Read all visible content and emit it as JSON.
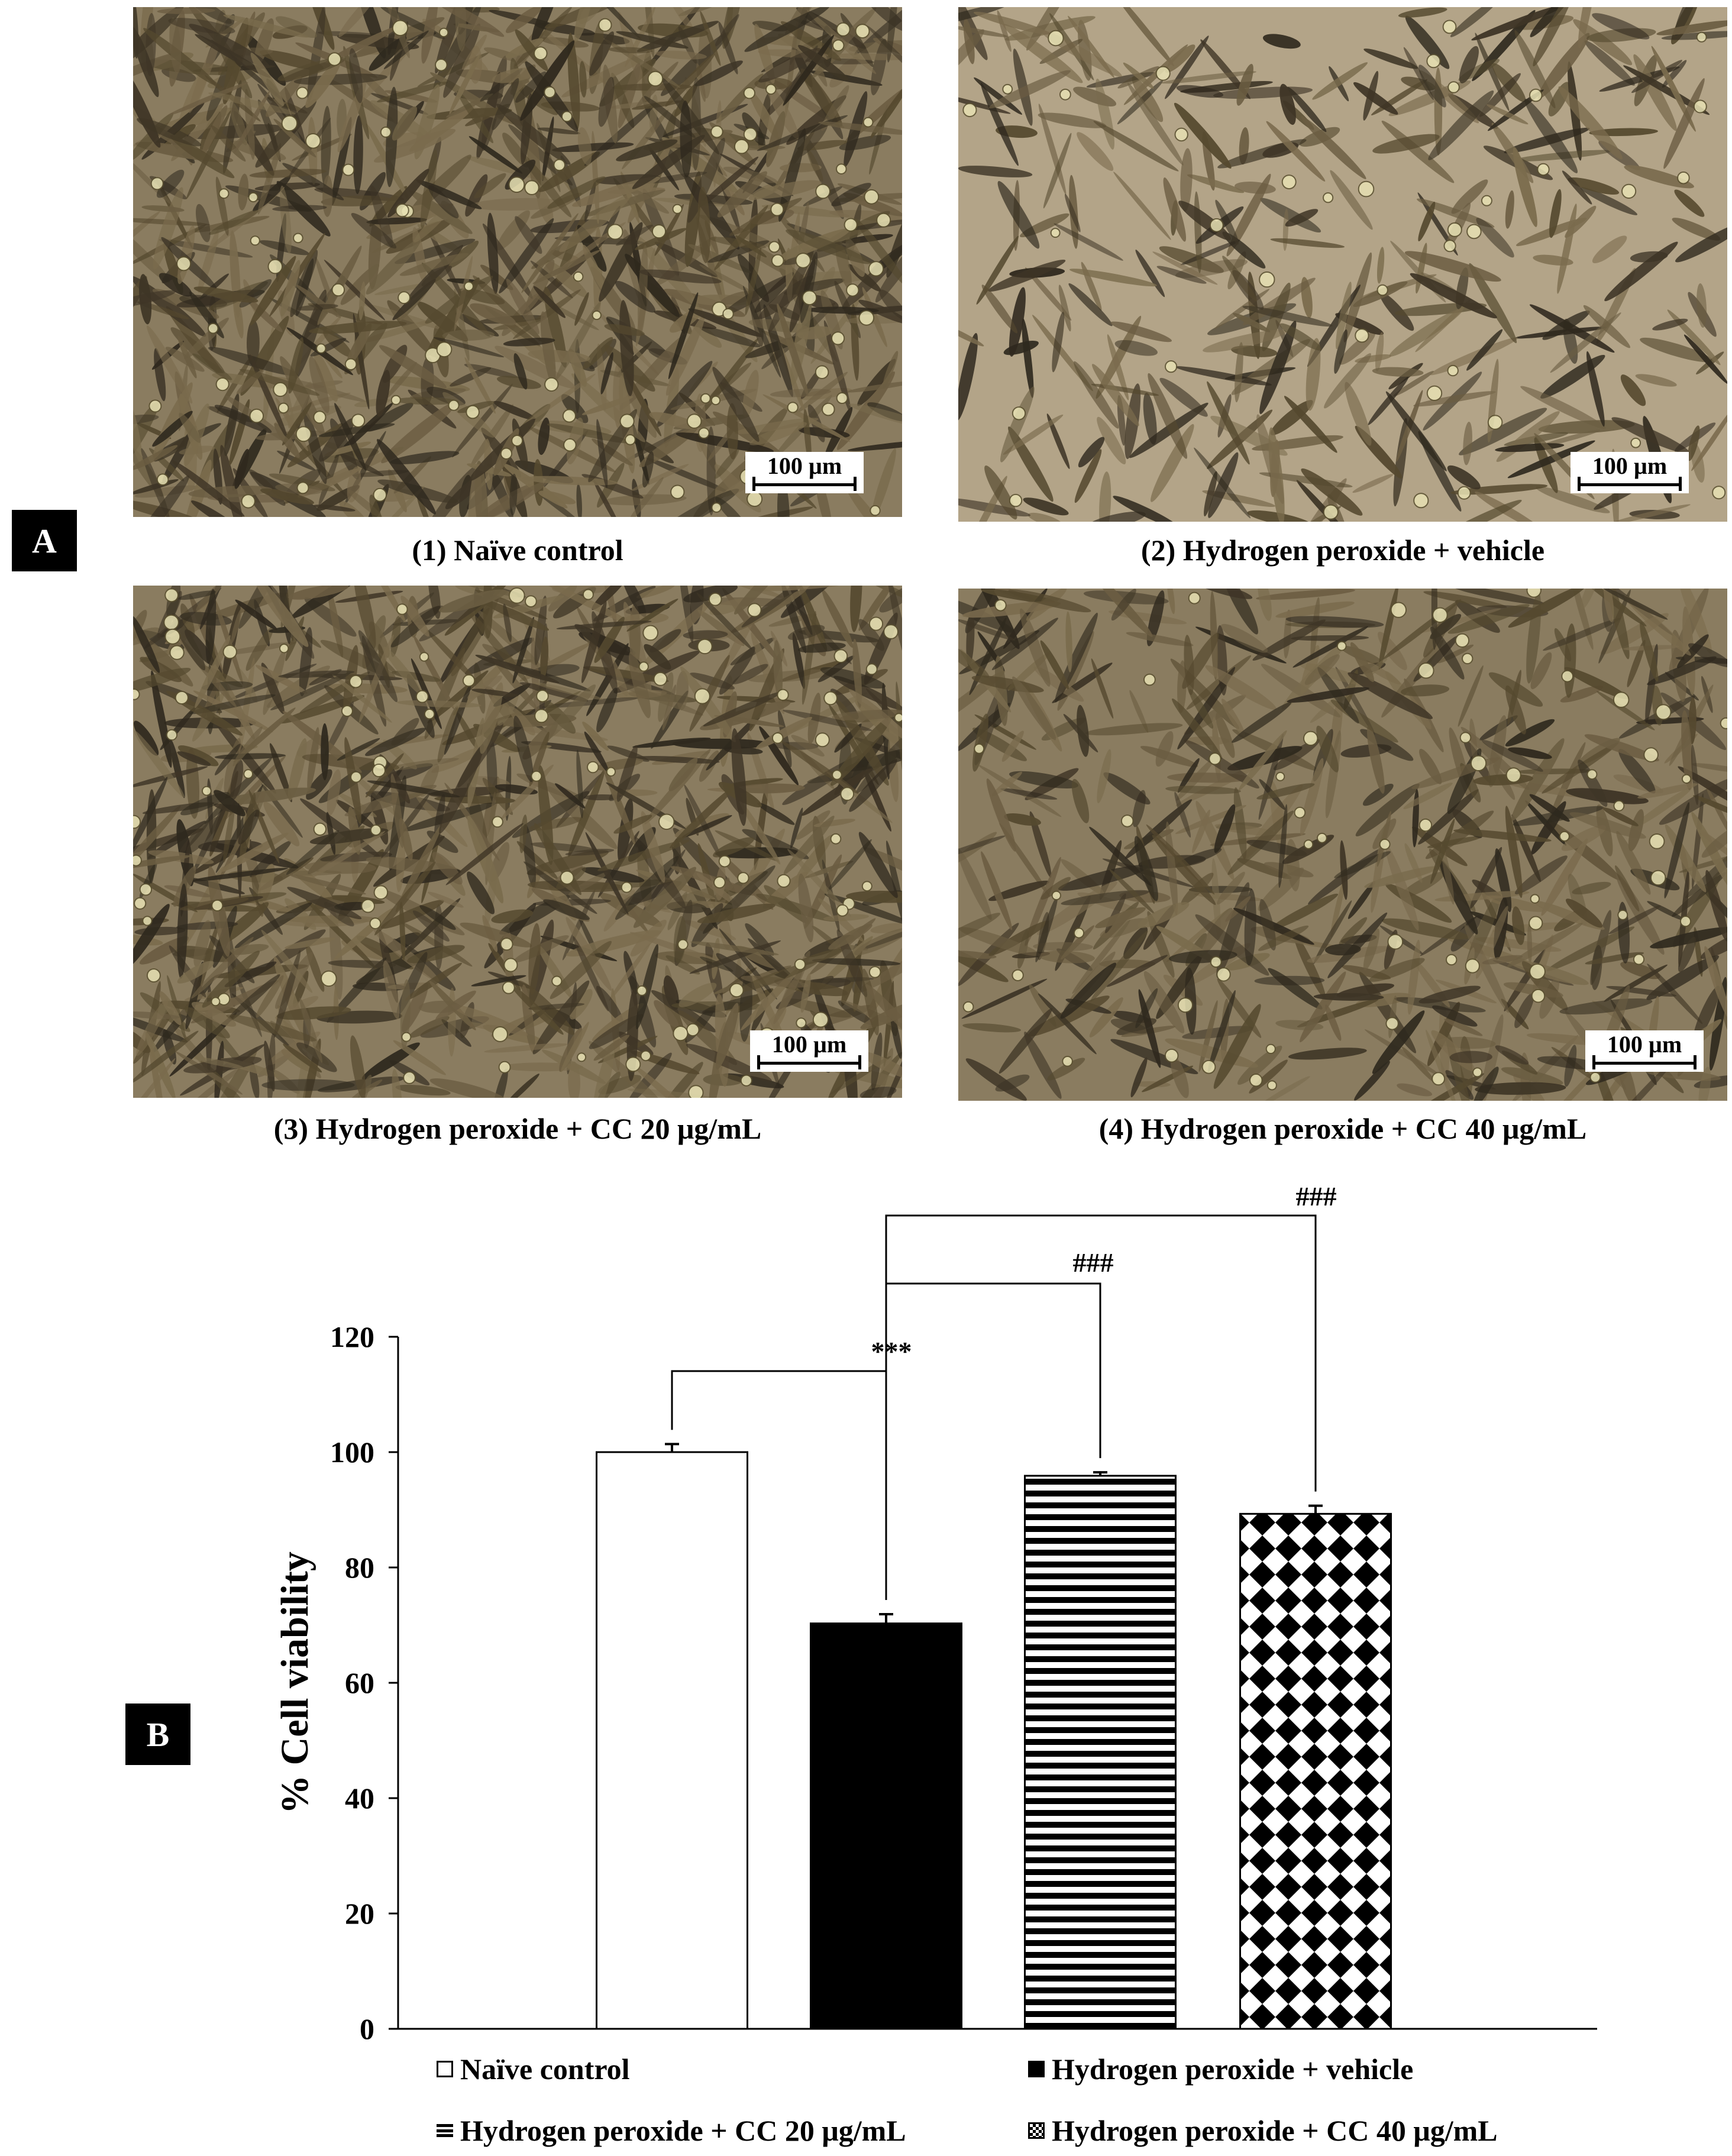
{
  "panel_a": {
    "label": "A",
    "images": [
      {
        "caption": "(1) Naïve control",
        "scale_bar": "100 µm",
        "confluence": "dense"
      },
      {
        "caption": "(2) Hydrogen peroxide + vehicle",
        "scale_bar": "100 µm",
        "confluence": "sparse"
      },
      {
        "caption": "(3) Hydrogen peroxide + CC 20 μg/mL",
        "scale_bar": "100 µm",
        "confluence": "dense"
      },
      {
        "caption": "(4) Hydrogen peroxide + CC 40 μg/mL",
        "scale_bar": "100 µm",
        "confluence": "medium"
      }
    ]
  },
  "panel_b": {
    "label": "B"
  },
  "chart_data": {
    "type": "bar",
    "ylabel": "% Cell viability",
    "xlabel": "",
    "ylim": [
      0,
      120
    ],
    "yticks": [
      0,
      20,
      40,
      60,
      80,
      100,
      120
    ],
    "categories": [
      "Naïve control",
      "Hydrogen peroxide + vehicle",
      "Hydrogen peroxide + CC 20 μg/mL",
      "Hydrogen peroxide + CC 40 μg/mL"
    ],
    "values": [
      100,
      70.3,
      95.9,
      89.3
    ],
    "errors": [
      1.4,
      1.6,
      0.6,
      1.4
    ],
    "fills": [
      "white",
      "black",
      "horizontal-stripes",
      "checkerboard"
    ],
    "significance": [
      {
        "from": 0,
        "to": 1,
        "label": "***"
      },
      {
        "from": 1,
        "to": 2,
        "label": "###"
      },
      {
        "from": 1,
        "to": 3,
        "label": "###"
      }
    ],
    "legend": {
      "placement": "bottom",
      "entries": [
        "Naïve control",
        "Hydrogen peroxide + vehicle",
        "Hydrogen peroxide + CC 20 μg/mL",
        "Hydrogen peroxide + CC 40 μg/mL"
      ]
    }
  }
}
